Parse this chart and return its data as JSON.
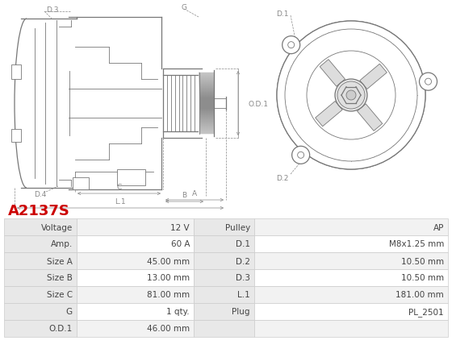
{
  "title": "A2137S",
  "title_color": "#cc0000",
  "table_headers_left": [
    "Voltage",
    "Amp.",
    "Size A",
    "Size B",
    "Size C",
    "G",
    "O.D.1"
  ],
  "table_values_left": [
    "12 V",
    "60 A",
    "45.00 mm",
    "13.00 mm",
    "81.00 mm",
    "1 qty.",
    "46.00 mm"
  ],
  "table_headers_right": [
    "Pulley",
    "D.1",
    "D.2",
    "D.3",
    "L.1",
    "Plug",
    ""
  ],
  "table_values_right": [
    "AP",
    "M8x1.25 mm",
    "10.50 mm",
    "10.50 mm",
    "181.00 mm",
    "PL_2501",
    ""
  ],
  "bg_color": "#ffffff",
  "table_header_bg": "#e8e8e8",
  "table_row_bg1": "#f2f2f2",
  "table_row_bg2": "#ffffff",
  "table_border_color": "#cccccc",
  "text_color": "#444444",
  "dlc": "#777777",
  "dim_color": "#888888"
}
